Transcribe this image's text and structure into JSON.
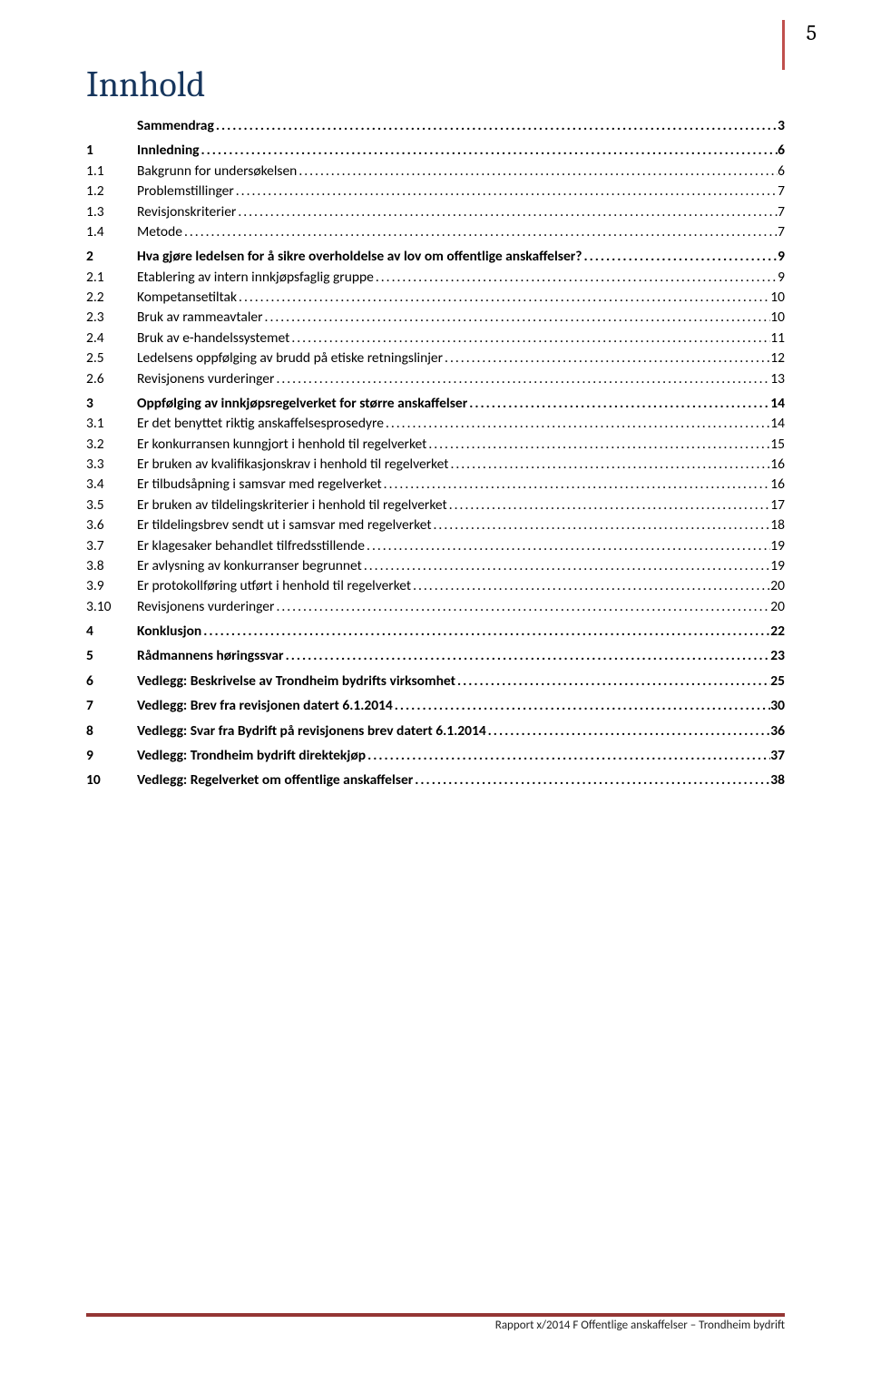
{
  "page_number": "5",
  "title": "Innhold",
  "colors": {
    "title": "#17365d",
    "accent_bar": "#c0504d",
    "footer_line": "#943634",
    "text": "#000000",
    "background": "#ffffff"
  },
  "typography": {
    "title_fontsize_pt": 30,
    "body_fontsize_pt": 11.5,
    "footer_fontsize_pt": 10,
    "title_font": "Cambria",
    "body_font": "Calibri"
  },
  "toc": [
    {
      "num": "",
      "label": "Sammendrag",
      "page": "3",
      "bold": true,
      "gap": false
    },
    {
      "num": "1",
      "label": "Innledning",
      "page": "6",
      "bold": true,
      "gap": true
    },
    {
      "num": "1.1",
      "label": "Bakgrunn for undersøkelsen",
      "page": "6",
      "bold": false,
      "gap": false
    },
    {
      "num": "1.2",
      "label": "Problemstillinger",
      "page": "7",
      "bold": false,
      "gap": false
    },
    {
      "num": "1.3",
      "label": "Revisjonskriterier",
      "page": "7",
      "bold": false,
      "gap": false
    },
    {
      "num": "1.4",
      "label": "Metode",
      "page": "7",
      "bold": false,
      "gap": false
    },
    {
      "num": "2",
      "label": "Hva gjøre ledelsen for å sikre overholdelse av lov om offentlige anskaffelser?",
      "page": "9",
      "bold": true,
      "gap": true
    },
    {
      "num": "2.1",
      "label": "Etablering av intern innkjøpsfaglig gruppe",
      "page": "9",
      "bold": false,
      "gap": false
    },
    {
      "num": "2.2",
      "label": "Kompetansetiltak",
      "page": "10",
      "bold": false,
      "gap": false
    },
    {
      "num": "2.3",
      "label": "Bruk av rammeavtaler",
      "page": "10",
      "bold": false,
      "gap": false
    },
    {
      "num": "2.4",
      "label": "Bruk av e-handelssystemet",
      "page": "11",
      "bold": false,
      "gap": false
    },
    {
      "num": "2.5",
      "label": "Ledelsens oppfølging av brudd på etiske retningslinjer",
      "page": "12",
      "bold": false,
      "gap": false
    },
    {
      "num": "2.6",
      "label": "Revisjonens vurderinger",
      "page": "13",
      "bold": false,
      "gap": false
    },
    {
      "num": "3",
      "label": "Oppfølging av innkjøpsregelverket for større anskaffelser",
      "page": "14",
      "bold": true,
      "gap": true
    },
    {
      "num": "3.1",
      "label": "Er det benyttet riktig anskaffelsesprosedyre",
      "page": "14",
      "bold": false,
      "gap": false
    },
    {
      "num": "3.2",
      "label": "Er konkurransen kunngjort i henhold til regelverket",
      "page": "15",
      "bold": false,
      "gap": false
    },
    {
      "num": "3.3",
      "label": "Er bruken av kvalifikasjonskrav i henhold til regelverket",
      "page": "16",
      "bold": false,
      "gap": false
    },
    {
      "num": "3.4",
      "label": "Er tilbudsåpning i samsvar med regelverket",
      "page": "16",
      "bold": false,
      "gap": false
    },
    {
      "num": "3.5",
      "label": "Er bruken av tildelingskriterier i henhold til regelverket",
      "page": "17",
      "bold": false,
      "gap": false
    },
    {
      "num": "3.6",
      "label": "Er tildelingsbrev sendt ut i samsvar med regelverket",
      "page": "18",
      "bold": false,
      "gap": false
    },
    {
      "num": "3.7",
      "label": "Er klagesaker behandlet tilfredsstillende",
      "page": "19",
      "bold": false,
      "gap": false
    },
    {
      "num": "3.8",
      "label": "Er avlysning av konkurranser begrunnet",
      "page": "19",
      "bold": false,
      "gap": false
    },
    {
      "num": "3.9",
      "label": "Er protokollføring utført i henhold til regelverket",
      "page": "20",
      "bold": false,
      "gap": false
    },
    {
      "num": "3.10",
      "label": "Revisjonens vurderinger",
      "page": "20",
      "bold": false,
      "gap": false
    },
    {
      "num": "4",
      "label": "Konklusjon",
      "page": "22",
      "bold": true,
      "gap": true
    },
    {
      "num": "5",
      "label": "Rådmannens høringssvar",
      "page": "23",
      "bold": true,
      "gap": true
    },
    {
      "num": "6",
      "label": "Vedlegg: Beskrivelse av Trondheim bydrifts virksomhet",
      "page": "25",
      "bold": true,
      "gap": true
    },
    {
      "num": "7",
      "label": "Vedlegg: Brev fra revisjonen datert 6.1.2014",
      "page": "30",
      "bold": true,
      "gap": true
    },
    {
      "num": "8",
      "label": "Vedlegg: Svar fra Bydrift på revisjonens brev datert 6.1.2014",
      "page": "36",
      "bold": true,
      "gap": true
    },
    {
      "num": "9",
      "label": "Vedlegg: Trondheim bydrift direktekjøp",
      "page": "37",
      "bold": true,
      "gap": true
    },
    {
      "num": "10",
      "label": "Vedlegg: Regelverket om offentlige anskaffelser",
      "page": "38",
      "bold": true,
      "gap": true
    }
  ],
  "footer": "Rapport x/2014 F Offentlige anskaffelser – Trondheim bydrift"
}
